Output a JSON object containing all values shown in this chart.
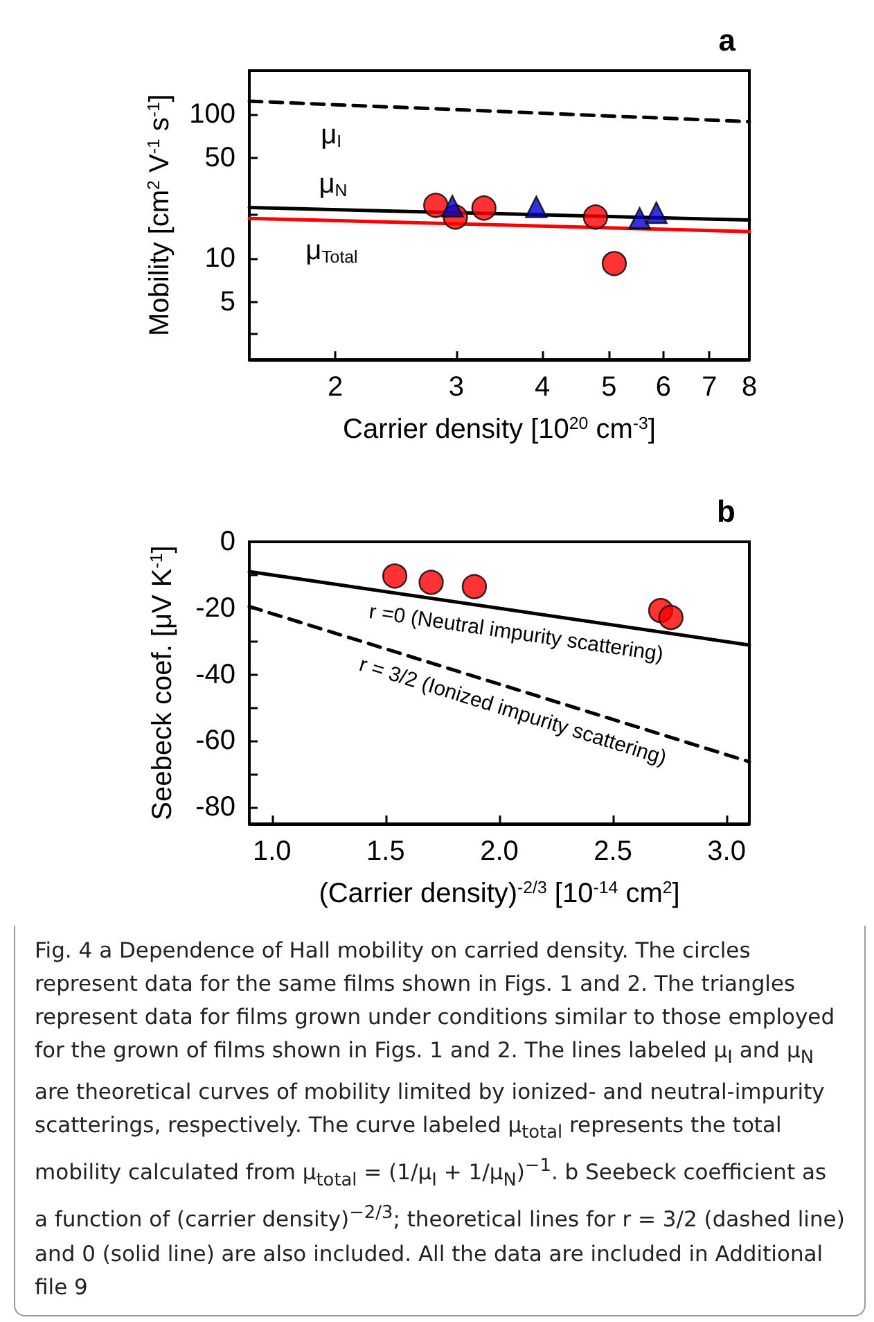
{
  "chart_data": [
    {
      "type": "scatter",
      "title": "a",
      "xlabel": "Carrier density [10$^{20}$ cm$^{-3}$]",
      "ylabel": "Mobility [cm$^{2}$ V$^{-1}$ s$^{-1}$]",
      "log": "xy",
      "xlim": [
        1.5,
        8
      ],
      "xticks": [
        2,
        3,
        4,
        5,
        6,
        7,
        8
      ],
      "ylim": [
        2,
        200
      ],
      "yticks": [
        {
          "value": 3,
          "label": null
        },
        5,
        10,
        {
          "value": 20,
          "label": null
        },
        50,
        100
      ],
      "series": [
        {
          "type": "line",
          "name": "μ$_{I}$",
          "color": "#000000",
          "line_style": "dashed",
          "marker": "none",
          "x": [
            1.5,
            8
          ],
          "values": [
            123,
            88.7
          ]
        },
        {
          "type": "line",
          "name": "μ$_{N}$",
          "color": "#000000",
          "line_style": "solid",
          "marker": "none",
          "x": [
            1.5,
            8
          ],
          "values": [
            22.6,
            18.5
          ]
        },
        {
          "type": "line",
          "name": "μ$_{Total}$",
          "color": "#ff0000",
          "line_style": "solid",
          "marker": "none",
          "x": [
            1.5,
            8
          ],
          "values": [
            19.0,
            15.4
          ]
        },
        {
          "color": "#ff0000",
          "marker": "circle",
          "x": [
            2.8,
            2.99,
            3.29,
            4.78,
            5.09
          ],
          "values": [
            23.4,
            19.4,
            22.4,
            19.4,
            9.25
          ]
        },
        {
          "color": "#0000cc",
          "marker": "triangle",
          "x": [
            2.96,
            3.92,
            5.54,
            5.86
          ],
          "values": [
            23.1,
            22.8,
            19.0,
            20.8
          ]
        }
      ]
    },
    {
      "type": "scatter",
      "title": "b",
      "xlabel": "(Carrier density)$^{-2/3}$ [10$^{-14}$ cm$^{2}$]",
      "ylabel": "Seebeck coef. [μV K$^{-1}$]",
      "xlim": [
        0.9,
        3.1
      ],
      "xticks": [
        {
          "value": 1,
          "label": "1.0"
        },
        {
          "value": 1.5,
          "label": "1.5"
        },
        {
          "value": 2,
          "label": "2.0"
        },
        {
          "value": 2.5,
          "label": "2.5"
        },
        {
          "value": 3,
          "label": "3.0"
        }
      ],
      "ylim": [
        -85,
        0
      ],
      "yticks": [
        -80,
        {
          "value": -70,
          "label": null
        },
        -60,
        {
          "value": -50,
          "label": null
        },
        -40,
        {
          "value": -30,
          "label": null
        },
        -20,
        {
          "value": -10,
          "label": null
        },
        0
      ],
      "series": [
        {
          "type": "line",
          "name": "r =0 (Neutral impurity scattering)",
          "color": "#000000",
          "line_style": "solid",
          "marker": "none",
          "x": [
            0.9,
            3.1
          ],
          "values": [
            -9.0,
            -31.1
          ]
        },
        {
          "type": "line",
          "name": "r = 3/2 (Ionized impurity scattering)",
          "color": "#000000",
          "line_style": "dashed",
          "marker": "none",
          "x": [
            0.9,
            3.1
          ],
          "values": [
            -19.5,
            -66.3
          ]
        },
        {
          "color": "#ff0000",
          "marker": "circle",
          "x": [
            1.54,
            1.7,
            1.89,
            2.71,
            2.755
          ],
          "values": [
            -10.3,
            -12.2,
            -13.5,
            -20.7,
            -22.8
          ]
        }
      ],
      "annotations": [
        "Fig. 4 a Dependence of Hall mobility on carried density. The circles represent data for the same films shown in Figs. 1 and 2. The triangles represent data for films grown under conditions similar to those employed for the grown of films shown in Figs. 1 and 2. The lines labeled μ$_{I}$ and μ$_{N}$ are theoretical curves of mobility limited by ionized- and neutral-impurity scatterings, respectively. The curve labeled μ$_{total}$ represents the total mobility calculated from μ$_{total}$ = (1/μ$_{I}$ + 1/μ$_{N}$)$^{−1}$. b Seebeck coefficient as a function of (carrier density)$^{−2/3}$; theoretical lines for r = 3/2 (dashed line) and 0 (solid line) are also included. All the data are included in Additional file 9"
      ]
    }
  ]
}
